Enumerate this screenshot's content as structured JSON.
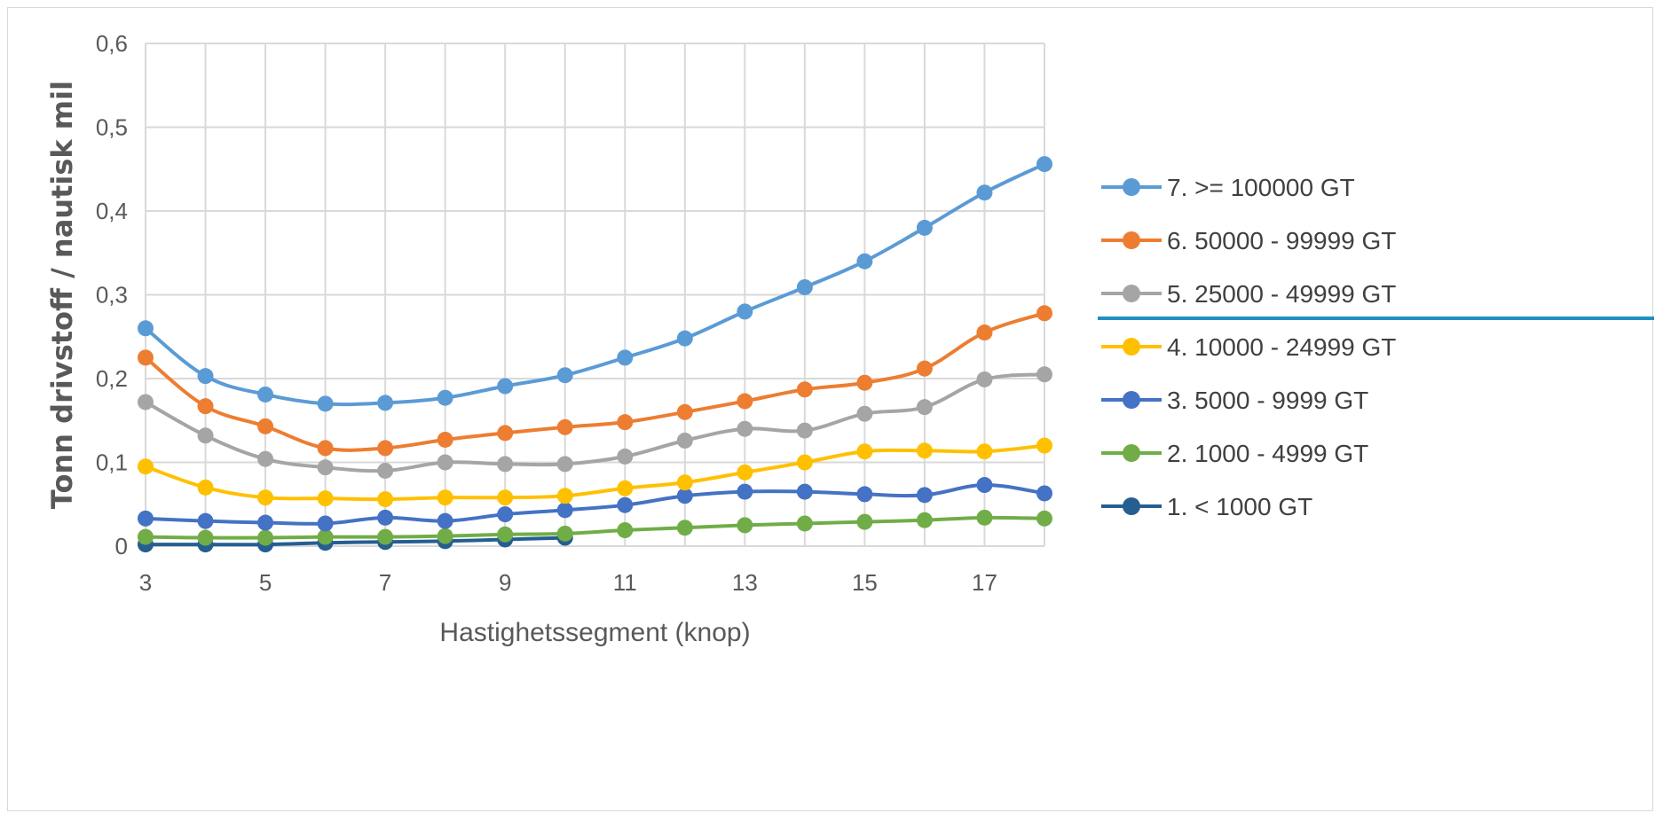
{
  "chart_data": {
    "type": "line",
    "title": "",
    "xlabel": "Hastighetssegment (knop)",
    "ylabel": "Tonn drivstoff / nautisk mil",
    "xlim": [
      3,
      18
    ],
    "ylim": [
      0,
      0.6
    ],
    "x_ticks": [
      3,
      5,
      7,
      9,
      11,
      13,
      15,
      17
    ],
    "y_ticks": [
      0,
      0.1,
      0.2,
      0.3,
      0.4,
      0.5,
      0.6
    ],
    "y_tick_labels": [
      "0",
      "0,1",
      "0,2",
      "0,3",
      "0,4",
      "0,5",
      "0,6"
    ],
    "grid": true,
    "legend_position": "right",
    "smooth": true,
    "x": [
      3,
      4,
      5,
      6,
      7,
      8,
      9,
      10,
      11,
      12,
      13,
      14,
      15,
      16,
      17,
      18
    ],
    "series": [
      {
        "name": "7. >= 100000 GT",
        "color": "#5b9bd5",
        "values": [
          0.26,
          0.203,
          0.181,
          0.17,
          0.171,
          0.177,
          0.191,
          0.204,
          0.225,
          0.248,
          0.28,
          0.309,
          0.34,
          0.38,
          0.422,
          0.456
        ]
      },
      {
        "name": "6. 50000 - 99999 GT",
        "color": "#ed7d31",
        "values": [
          0.225,
          0.167,
          0.143,
          0.117,
          0.117,
          0.127,
          0.135,
          0.142,
          0.148,
          0.16,
          0.173,
          0.187,
          0.195,
          0.212,
          0.255,
          0.278
        ]
      },
      {
        "name": "5. 25000 - 49999 GT",
        "color": "#a5a5a5",
        "values": [
          0.172,
          0.132,
          0.104,
          0.094,
          0.09,
          0.1,
          0.098,
          0.098,
          0.107,
          0.126,
          0.14,
          0.138,
          0.158,
          0.166,
          0.199,
          0.205
        ]
      },
      {
        "name": "4. 10000 - 24999 GT",
        "color": "#ffc000",
        "values": [
          0.095,
          0.07,
          0.058,
          0.057,
          0.056,
          0.058,
          0.058,
          0.06,
          0.069,
          0.076,
          0.088,
          0.1,
          0.113,
          0.114,
          0.113,
          0.12
        ]
      },
      {
        "name": "3. 5000 - 9999 GT",
        "color": "#4472c4",
        "values": [
          0.033,
          0.03,
          0.028,
          0.027,
          0.034,
          0.03,
          0.038,
          0.043,
          0.049,
          0.06,
          0.065,
          0.065,
          0.062,
          0.061,
          0.073,
          0.063
        ]
      },
      {
        "name": "2. 1000 - 4999 GT",
        "color": "#70ad47",
        "values": [
          0.011,
          0.01,
          0.01,
          0.011,
          0.011,
          0.012,
          0.014,
          0.015,
          0.019,
          0.022,
          0.025,
          0.027,
          0.029,
          0.031,
          0.034,
          0.033
        ]
      },
      {
        "name": "1. < 1000 GT",
        "color": "#255e91",
        "values": [
          0.002,
          0.002,
          0.002,
          0.004,
          0.005,
          0.006,
          0.008,
          0.01,
          null,
          null,
          null,
          null,
          null,
          null,
          null,
          null
        ]
      }
    ]
  },
  "colors": {
    "grid": "#d9d9d9",
    "axis_text": "#595959",
    "legend_text": "#404040",
    "frame": "#d9d9d9",
    "accent_line": "#1f8fc4"
  }
}
